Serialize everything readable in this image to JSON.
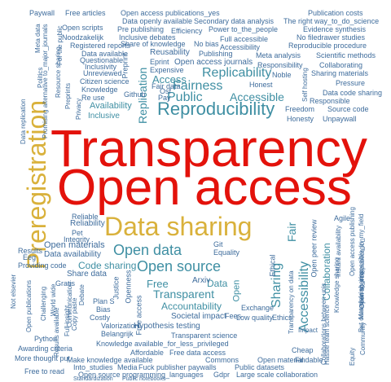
{
  "colors": {
    "red": "#e3120b",
    "gold": "#d9b13b",
    "teal": "#3f8fa3",
    "blue": "#3e6c9c",
    "navy": "#2f4f7a"
  },
  "words": [
    {
      "t": "Transparency",
      "c": "red"
    },
    {
      "t": "Open access",
      "c": "red"
    },
    {
      "t": "Data sharing",
      "c": "gold"
    },
    {
      "t": "Preregistration",
      "c": "gold"
    },
    {
      "t": "Reproducibility",
      "c": "teal"
    },
    {
      "t": "Replicability",
      "c": "teal"
    },
    {
      "t": "Fairness",
      "c": "teal"
    },
    {
      "t": "Accessible",
      "c": "teal"
    },
    {
      "t": "Public",
      "c": "teal"
    },
    {
      "t": "Access",
      "c": "teal"
    },
    {
      "t": "Replication",
      "c": "teal"
    },
    {
      "t": "Availability",
      "c": "teal"
    },
    {
      "t": "Inclusive",
      "c": "teal"
    },
    {
      "t": "Open data",
      "c": "teal"
    },
    {
      "t": "Open source",
      "c": "teal"
    },
    {
      "t": "Free",
      "c": "teal"
    },
    {
      "t": "Transparent",
      "c": "teal"
    },
    {
      "t": "Accountability",
      "c": "teal"
    },
    {
      "t": "Sharing",
      "c": "teal"
    },
    {
      "t": "Fair",
      "c": "teal"
    },
    {
      "t": "Accessibility",
      "c": "teal"
    },
    {
      "t": "Collaboration",
      "c": "teal"
    },
    {
      "t": "Code sharing",
      "c": "teal"
    },
    {
      "t": "Open materials",
      "c": "blue"
    },
    {
      "t": "Data availability",
      "c": "blue"
    },
    {
      "t": "Reliable",
      "c": "blue"
    },
    {
      "t": "Reliability",
      "c": "blue"
    },
    {
      "t": "Pet",
      "c": "blue"
    },
    {
      "t": "Integrity",
      "c": "blue"
    },
    {
      "t": "Results",
      "c": "blue"
    },
    {
      "t": "Eeg",
      "c": "blue"
    },
    {
      "t": "Providing code",
      "c": "blue"
    },
    {
      "t": "Share data",
      "c": "blue"
    },
    {
      "t": "Git",
      "c": "blue"
    },
    {
      "t": "Equality",
      "c": "blue"
    },
    {
      "t": "Data",
      "c": "teal"
    },
    {
      "t": "Open",
      "c": "teal"
    },
    {
      "t": "Ethical",
      "c": "blue"
    },
    {
      "t": "Exchange",
      "c": "blue"
    },
    {
      "t": "Low quality",
      "c": "blue"
    },
    {
      "t": "Ethics",
      "c": "blue"
    },
    {
      "t": "Fees",
      "c": "blue"
    },
    {
      "t": "Arxiv",
      "c": "blue"
    },
    {
      "t": "Societal impact",
      "c": "blue"
    },
    {
      "t": "Hypothesis testing",
      "c": "blue"
    },
    {
      "t": "Transparent science",
      "c": "blue"
    },
    {
      "t": "Knowledge available_for_less_privileged",
      "c": "blue"
    },
    {
      "t": "Free access",
      "c": "blue"
    },
    {
      "t": "Affordable",
      "c": "blue"
    },
    {
      "t": "Free data access",
      "c": "blue"
    },
    {
      "t": "Make knowledge available",
      "c": "blue"
    },
    {
      "t": "Into_studies",
      "c": "blue"
    },
    {
      "t": "Media",
      "c": "blue"
    },
    {
      "t": "Fuck publisher paywalls",
      "c": "blue"
    },
    {
      "t": "Commons",
      "c": "blue"
    },
    {
      "t": "Open source programming_languages",
      "c": "blue"
    },
    {
      "t": "Gdpr",
      "c": "blue"
    },
    {
      "t": "Large scale collaboration",
      "c": "blue"
    },
    {
      "t": "Standardization",
      "c": "blue"
    },
    {
      "t": "Public notebooks",
      "c": "blue"
    },
    {
      "t": "Public datasets",
      "c": "blue"
    },
    {
      "t": "Free to read",
      "c": "blue"
    },
    {
      "t": "More thought put",
      "c": "blue"
    },
    {
      "t": "Awarding criteria",
      "c": "blue"
    },
    {
      "t": "Python",
      "c": "blue"
    },
    {
      "t": "Open material",
      "c": "blue"
    },
    {
      "t": "Cheap",
      "c": "blue"
    },
    {
      "t": "Findable",
      "c": "blue"
    },
    {
      "t": "Valorization",
      "c": "blue"
    },
    {
      "t": "Belangrijk",
      "c": "blue"
    },
    {
      "t": "Costly",
      "c": "blue"
    },
    {
      "t": "Bias",
      "c": "blue"
    },
    {
      "t": "Plan S",
      "c": "blue"
    },
    {
      "t": "Justice",
      "c": "blue"
    },
    {
      "t": "Openness",
      "c": "blue"
    },
    {
      "t": "Gratis",
      "c": "blue"
    },
    {
      "t": "Debate",
      "c": "blue"
    },
    {
      "t": "Copy paste",
      "c": "blue"
    },
    {
      "t": "Communication",
      "c": "blue"
    },
    {
      "t": "Challenging",
      "c": "blue"
    },
    {
      "t": "World wide",
      "c": "blue"
    },
    {
      "t": "Open publications",
      "c": "blue"
    },
    {
      "t": "Not elsevier",
      "c": "blue"
    },
    {
      "t": "Open peer review",
      "c": "blue"
    },
    {
      "t": "Agile",
      "c": "blue"
    },
    {
      "t": "Knowledge sharing",
      "c": "blue"
    },
    {
      "t": "Instant availability",
      "c": "blue"
    },
    {
      "t": "Open access publishing",
      "c": "blue"
    },
    {
      "t": "Open source publication",
      "c": "blue"
    },
    {
      "t": "Materials sharing",
      "c": "blue"
    },
    {
      "t": "Community",
      "c": "blue"
    },
    {
      "t": "But data sharing_impossible_in_my_field",
      "c": "blue"
    },
    {
      "t": "Collaborations between unis",
      "c": "blue"
    },
    {
      "t": "Hassle team science",
      "c": "blue"
    },
    {
      "t": "Transparency on data",
      "c": "blue"
    },
    {
      "t": "Impact",
      "c": "blue"
    },
    {
      "t": "Paywall",
      "c": "blue"
    },
    {
      "t": "Free articles",
      "c": "blue"
    },
    {
      "t": "Open access publications_yes",
      "c": "blue"
    },
    {
      "t": "Data openly available",
      "c": "blue"
    },
    {
      "t": "Secondary data analysis",
      "c": "blue"
    },
    {
      "t": "Publication costs",
      "c": "blue"
    },
    {
      "t": "The right way_to_do_science",
      "c": "blue"
    },
    {
      "t": "Evidence synthesis",
      "c": "blue"
    },
    {
      "t": "No filedrawer studies",
      "c": "blue"
    },
    {
      "t": "Reproducible procedure",
      "c": "blue"
    },
    {
      "t": "Scientific methods",
      "c": "blue"
    },
    {
      "t": "Collaborating",
      "c": "blue"
    },
    {
      "t": "Sharing materials",
      "c": "blue"
    },
    {
      "t": "Pressure",
      "c": "blue"
    },
    {
      "t": "Data code sharing",
      "c": "blue"
    },
    {
      "t": "Responsible",
      "c": "blue"
    },
    {
      "t": "Source code",
      "c": "blue"
    },
    {
      "t": "Unpaywall",
      "c": "blue"
    },
    {
      "t": "Freedom",
      "c": "blue"
    },
    {
      "t": "Honesty",
      "c": "blue"
    },
    {
      "t": "Self hosting",
      "c": "blue"
    },
    {
      "t": "Responsibility",
      "c": "blue"
    },
    {
      "t": "Meta analysis",
      "c": "blue"
    },
    {
      "t": "Noble",
      "c": "blue"
    },
    {
      "t": "Honest",
      "c": "blue"
    },
    {
      "t": "Open scripts",
      "c": "blue"
    },
    {
      "t": "Pre publishing",
      "c": "blue"
    },
    {
      "t": "Efficiency",
      "c": "blue"
    },
    {
      "t": "Power to_the_people",
      "c": "blue"
    },
    {
      "t": "Inclusive debates",
      "c": "blue"
    },
    {
      "t": "Share of knowledge",
      "c": "blue"
    },
    {
      "t": "No bias",
      "c": "blue"
    },
    {
      "t": "Full accessible",
      "c": "blue"
    },
    {
      "t": "Accessibility",
      "c": "blue"
    },
    {
      "t": "Noodzakelijk",
      "c": "blue"
    },
    {
      "t": "Registered reports",
      "c": "blue"
    },
    {
      "t": "Data available",
      "c": "blue"
    },
    {
      "t": "Questionable",
      "c": "blue"
    },
    {
      "t": "Inclusivity",
      "c": "blue"
    },
    {
      "t": "Unreviewed",
      "c": "blue"
    },
    {
      "t": "Citizen science",
      "c": "blue"
    },
    {
      "t": "Knowledge",
      "c": "blue"
    },
    {
      "t": "Re use",
      "c": "blue"
    },
    {
      "t": "Reusability",
      "c": "blue"
    },
    {
      "t": "Publishing",
      "c": "blue"
    },
    {
      "t": "Eprint",
      "c": "blue"
    },
    {
      "t": "Expensive",
      "c": "blue"
    },
    {
      "t": "Open access journals",
      "c": "blue"
    },
    {
      "t": "Preprint",
      "c": "blue"
    },
    {
      "t": "Fair data",
      "c": "blue"
    },
    {
      "t": "Github",
      "c": "blue"
    },
    {
      "t": "Osf",
      "c": "blue"
    },
    {
      "t": "Pay",
      "c": "blue"
    },
    {
      "t": "Meta data",
      "c": "blue"
    },
    {
      "t": "Politics",
      "c": "blue"
    },
    {
      "t": "For the public",
      "c": "blue"
    },
    {
      "t": "Promising alternative to_major_journals",
      "c": "blue"
    },
    {
      "t": "Resource sharing",
      "c": "blue"
    },
    {
      "t": "Preprints",
      "c": "blue"
    },
    {
      "t": "Privacy",
      "c": "blue"
    },
    {
      "t": "Data replication",
      "c": "blue"
    },
    {
      "t": "Equity",
      "c": "blue"
    },
    {
      "t": "Full insight",
      "c": "blue"
    },
    {
      "t": "Results available",
      "c": "blue"
    }
  ]
}
